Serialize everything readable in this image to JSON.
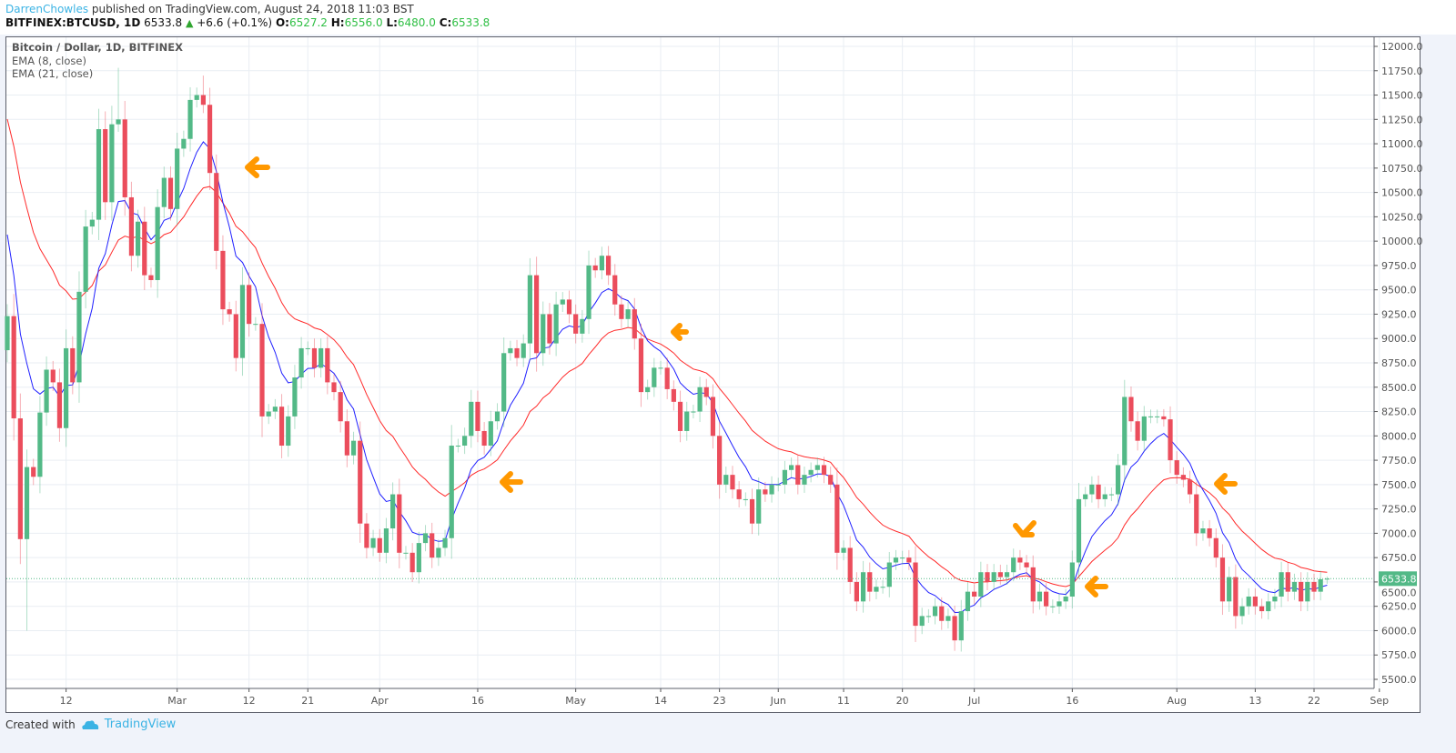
{
  "header": {
    "author": "DarrenChowles",
    "published": "published on TradingView.com, August 24, 2018 11:03 BST",
    "symbol": "BITFINEX:BTCUSD, 1D",
    "last": "6533.8",
    "change": "+6.6 (+0.1%)",
    "o_label": "O:",
    "o": "6527.2",
    "h_label": "H:",
    "h": "6556.0",
    "l_label": "L:",
    "l": "6480.0",
    "c_label": "C:",
    "c": "6533.8"
  },
  "legend": {
    "title": "Bitcoin / Dollar, 1D, BITFINEX",
    "ema8": "EMA (8, close)",
    "ema21": "EMA (21, close)"
  },
  "footer": {
    "created_with": "Created with",
    "brand": "TradingView"
  },
  "colors": {
    "up": "#53b987",
    "down": "#eb4d5c",
    "ema8": "#2020ff",
    "ema21": "#ff2a2a",
    "annotation": "#ff9800",
    "grid": "#e9eef3",
    "last_price": "#53b987"
  },
  "chart_data": {
    "type": "candlestick",
    "title": "Bitcoin / Dollar, 1D, BITFINEX",
    "start_date": "2018-02-03",
    "first_open": 8880,
    "closes": [
      9230,
      8180,
      6940,
      7680,
      7580,
      8240,
      8680,
      8550,
      8080,
      8900,
      8550,
      9480,
      10150,
      10220,
      11150,
      10400,
      11200,
      11250,
      10450,
      9850,
      10200,
      9650,
      9600,
      10350,
      10650,
      10330,
      10950,
      11050,
      11450,
      11500,
      11400,
      10700,
      9900,
      9300,
      9250,
      8800,
      9550,
      9150,
      9150,
      8200,
      8250,
      8300,
      7900,
      8200,
      8600,
      8900,
      8900,
      8700,
      8900,
      8550,
      8450,
      8150,
      7800,
      7950,
      7100,
      6850,
      6950,
      6800,
      7050,
      7400,
      6800,
      6800,
      6600,
      6900,
      7000,
      6750,
      6850,
      6950,
      7900,
      7900,
      8000,
      8350,
      8050,
      7900,
      8150,
      8250,
      8850,
      8900,
      8800,
      8950,
      9650,
      8850,
      9250,
      8950,
      9350,
      9400,
      9250,
      9050,
      9200,
      9750,
      9700,
      9850,
      9650,
      9350,
      9200,
      9300,
      9000,
      8450,
      8500,
      8700,
      8700,
      8480,
      8350,
      8050,
      8250,
      8250,
      8500,
      8400,
      8000,
      7500,
      7600,
      7450,
      7350,
      7350,
      7100,
      7450,
      7400,
      7500,
      7500,
      7650,
      7700,
      7500,
      7600,
      7650,
      7700,
      7600,
      7500,
      6800,
      6850,
      6500,
      6300,
      6600,
      6400,
      6450,
      6450,
      6700,
      6750,
      6750,
      6700,
      6050,
      6150,
      6150,
      6250,
      6100,
      6150,
      5900,
      6200,
      6400,
      6350,
      6600,
      6500,
      6600,
      6550,
      6600,
      6750,
      6700,
      6650,
      6300,
      6400,
      6250,
      6250,
      6300,
      6350,
      6700,
      7350,
      7400,
      7500,
      7350,
      7400,
      7400,
      7700,
      8400,
      8150,
      7950,
      8200,
      8200,
      8200,
      8170,
      7750,
      7600,
      7550,
      7400,
      7000,
      7050,
      6950,
      6750,
      6300,
      6550,
      6150,
      6250,
      6350,
      6250,
      6200,
      6300,
      6350,
      6600,
      6400,
      6500,
      6300,
      6500,
      6400,
      6527.2,
      6533.8
    ],
    "wick_overrides": {
      "3": {
        "l": 6000
      },
      "17": {
        "h": 11780
      },
      "30": {
        "h": 11700
      },
      "214": {
        "h": 6900
      },
      "202": {
        "h": 6556,
        "l": 6480
      }
    },
    "ema8_start": 10067,
    "ema21_start": 11253,
    "series": [
      {
        "name": "EMA (8, close)",
        "period": 8
      },
      {
        "name": "EMA (21, close)",
        "period": 21
      }
    ],
    "ylim": [
      5500,
      12000
    ],
    "y_ticks": [
      "12000.0",
      "11750.0",
      "11500.0",
      "11250.0",
      "11000.0",
      "10750.0",
      "10500.0",
      "10250.0",
      "10000.0",
      "9750.0",
      "9500.0",
      "9250.0",
      "9000.0",
      "8750.0",
      "8500.0",
      "8250.0",
      "8000.0",
      "7750.0",
      "7500.0",
      "7250.0",
      "7000.0",
      "6750.0",
      "6500.0",
      "6250.0",
      "6000.0",
      "5750.0",
      "5500.0"
    ],
    "x_ticks": [
      {
        "label": "12",
        "day": 9
      },
      {
        "label": "Mar",
        "day": 26
      },
      {
        "label": "12",
        "day": 37
      },
      {
        "label": "21",
        "day": 46
      },
      {
        "label": "Apr",
        "day": 57
      },
      {
        "label": "16",
        "day": 72
      },
      {
        "label": "May",
        "day": 87
      },
      {
        "label": "14",
        "day": 100
      },
      {
        "label": "23",
        "day": 109
      },
      {
        "label": "Jun",
        "day": 118
      },
      {
        "label": "11",
        "day": 128
      },
      {
        "label": "20",
        "day": 137
      },
      {
        "label": "Jul",
        "day": 148
      },
      {
        "label": "16",
        "day": 163
      },
      {
        "label": "Aug",
        "day": 179
      },
      {
        "label": "13",
        "day": 191
      },
      {
        "label": "22",
        "day": 200
      },
      {
        "label": "Sep",
        "day": 210
      }
    ],
    "last_price_label": "6533.8",
    "last_price": 6533.8
  }
}
